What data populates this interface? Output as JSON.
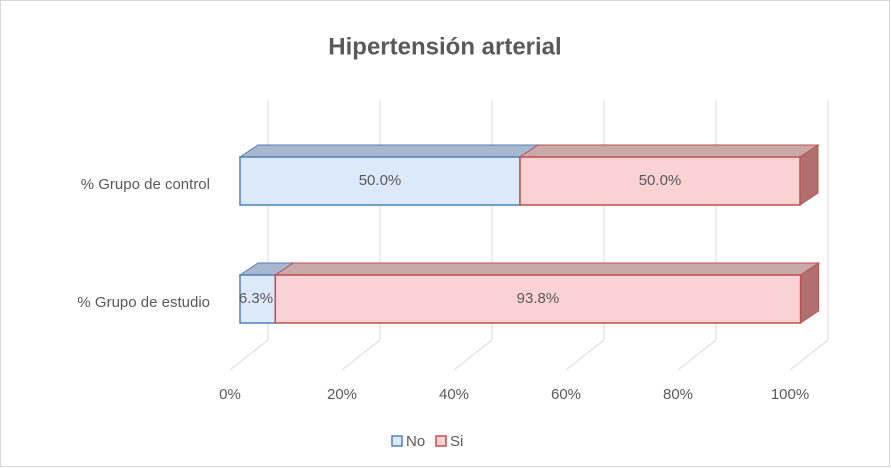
{
  "chart_data": {
    "type": "bar3d_stacked_horizontal",
    "title": "Hipertensión  arterial",
    "categories": [
      "% Grupo de control",
      "% Grupo de estudio"
    ],
    "series": [
      {
        "name": "No",
        "color": "#dce9fb",
        "edge": "#4f81bd",
        "values": [
          50.0,
          6.3
        ],
        "value_labels": [
          "50.0%",
          "6.3%"
        ]
      },
      {
        "name": "Si",
        "color": "#f9d3d3",
        "edge": "#c0504d",
        "values": [
          50.0,
          93.8
        ],
        "value_labels": [
          "50.0%",
          "93.8%"
        ]
      }
    ],
    "xlim": [
      0,
      100
    ],
    "xticks": [
      {
        "value": 0,
        "label": "0%"
      },
      {
        "value": 20,
        "label": "20%"
      },
      {
        "value": 40,
        "label": "40%"
      },
      {
        "value": 60,
        "label": "60%"
      },
      {
        "value": 80,
        "label": "80%"
      },
      {
        "value": 100,
        "label": "100%"
      }
    ],
    "grid": true,
    "legend": "bottom"
  }
}
